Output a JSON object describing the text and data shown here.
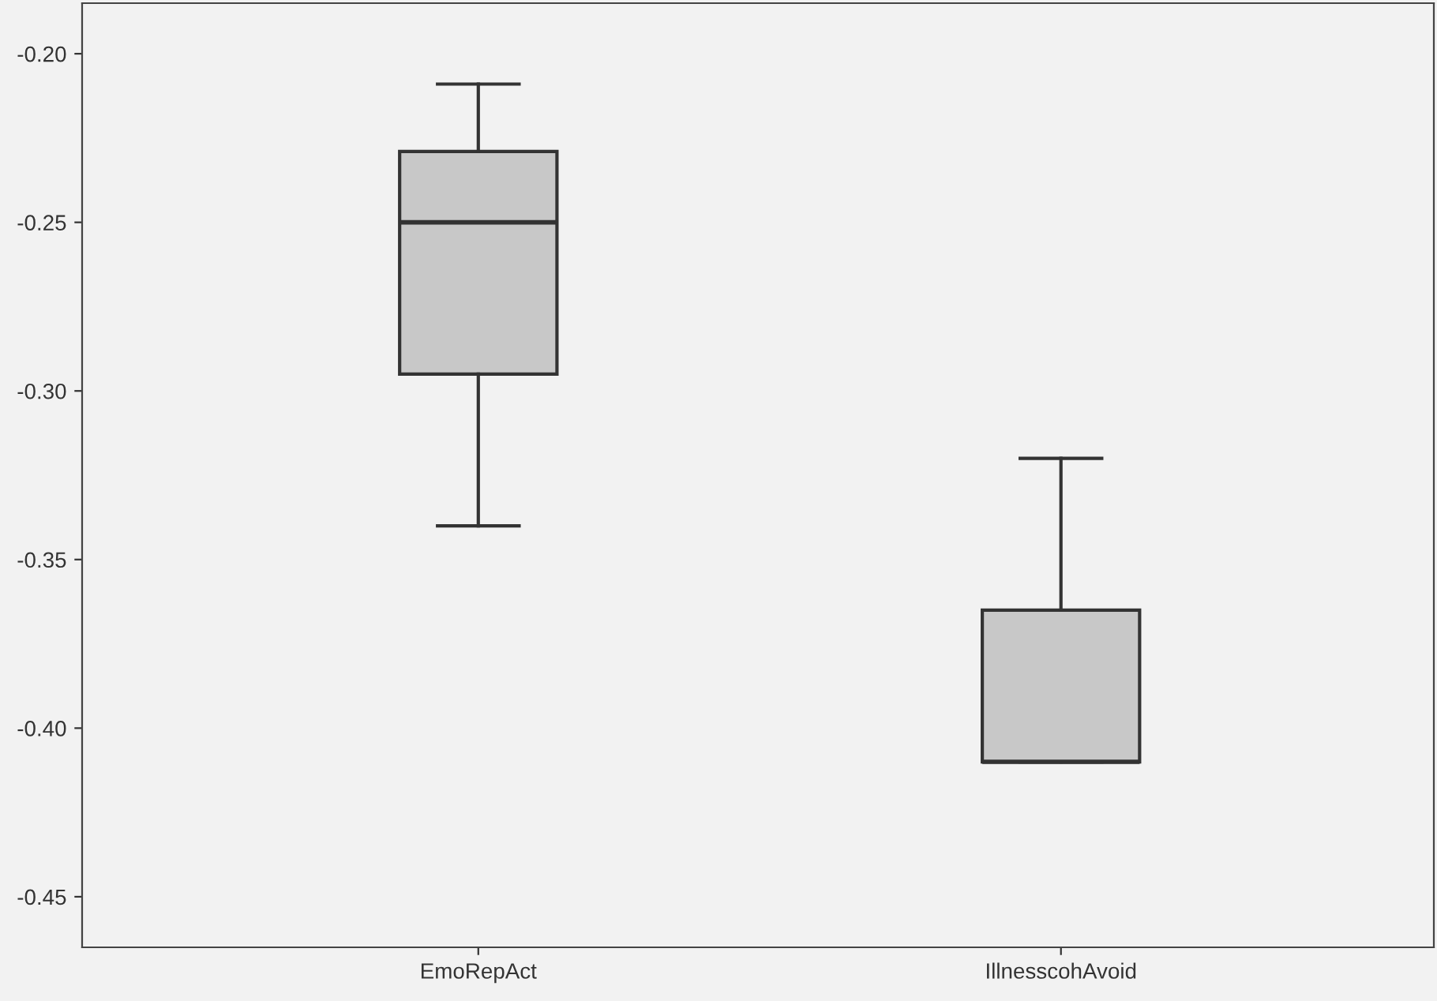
{
  "chart_data": {
    "type": "box",
    "categories": [
      "EmoRepAct",
      "IllnesscohAvoid"
    ],
    "boxes": [
      {
        "low": -0.34,
        "q1": -0.295,
        "median": -0.25,
        "q3": -0.229,
        "high": -0.209
      },
      {
        "low": -0.41,
        "q1": -0.41,
        "median": -0.41,
        "q3": -0.365,
        "high": -0.32
      }
    ],
    "color": "#c8c8c8",
    "ylim": [
      -0.465,
      -0.185
    ],
    "yticks": [
      {
        "value": -0.45,
        "label": "-0.45"
      },
      {
        "value": -0.4,
        "label": "-0.40"
      },
      {
        "value": -0.35,
        "label": "-0.35"
      },
      {
        "value": -0.3,
        "label": "-0.30"
      },
      {
        "value": -0.25,
        "label": "-0.25"
      },
      {
        "value": -0.2,
        "label": "-0.20"
      }
    ],
    "grid": false
  }
}
